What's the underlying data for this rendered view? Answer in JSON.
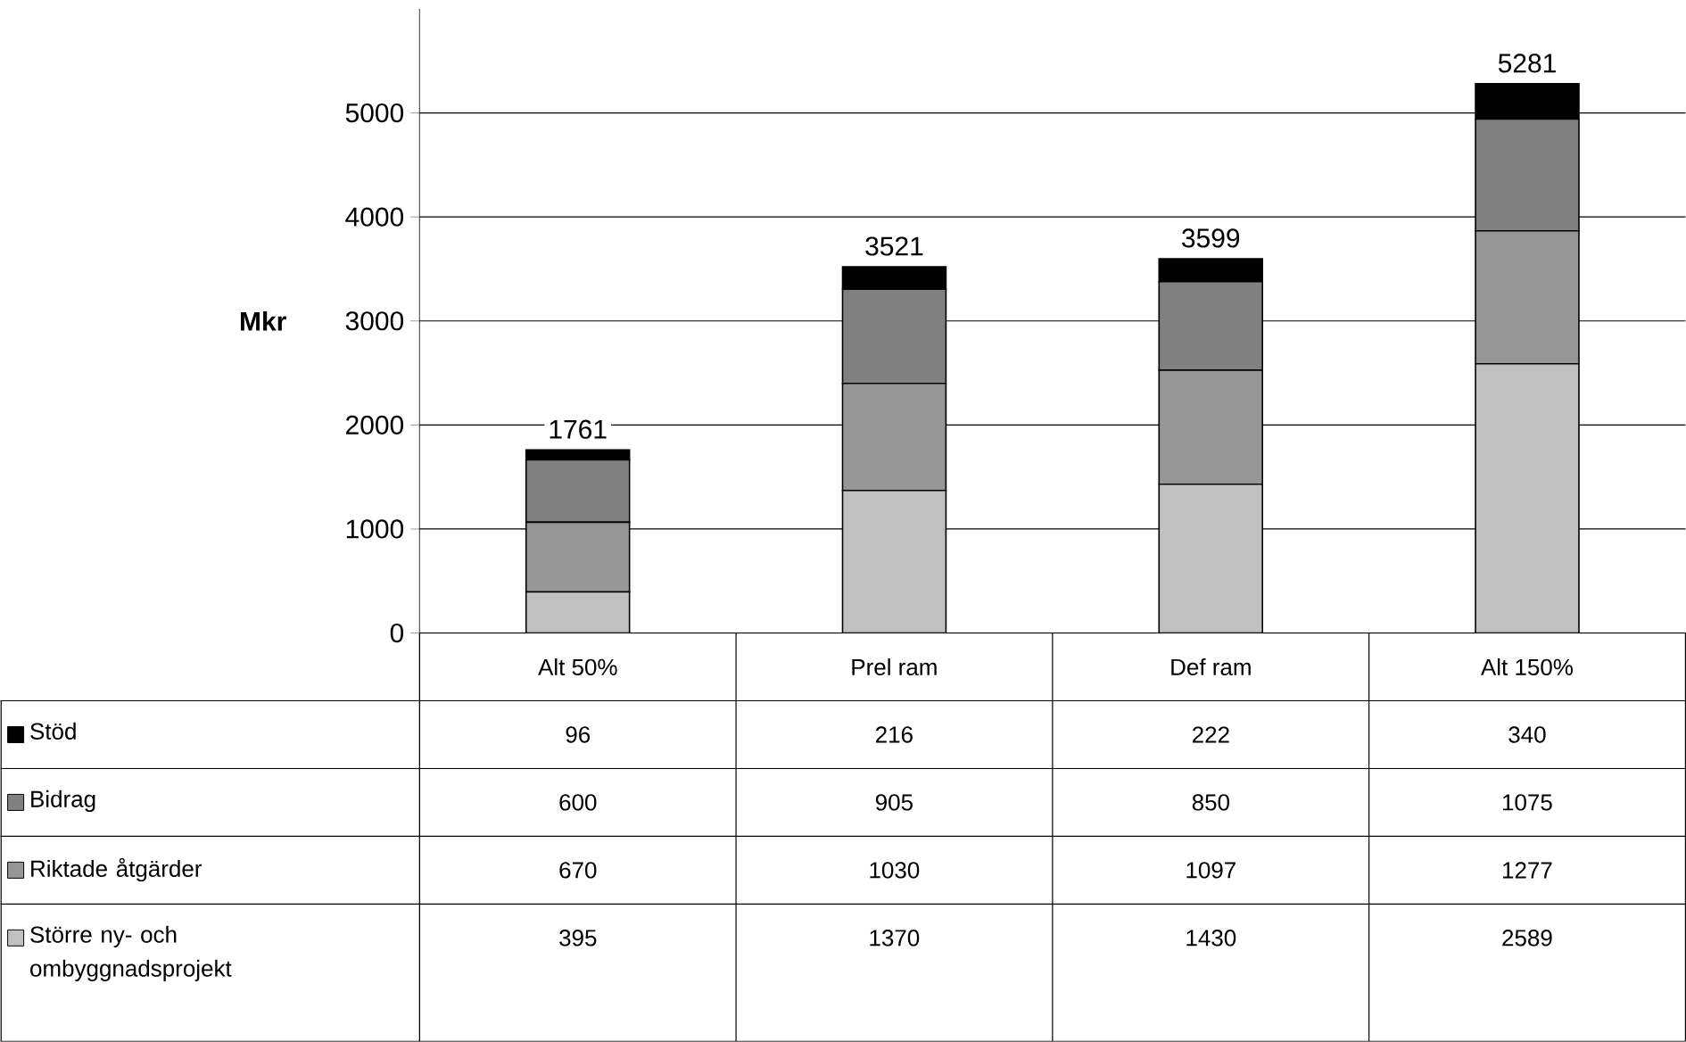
{
  "chart_data": {
    "type": "bar",
    "stacked": true,
    "ylabel": "Mkr",
    "categories": [
      "Alt 50%",
      "Prel ram",
      "Def ram",
      "Alt 150%"
    ],
    "series": [
      {
        "name": "Större ny- och ombyggnadsprojekt",
        "color": "#c0c0c0",
        "values": [
          395,
          1370,
          1430,
          2589
        ]
      },
      {
        "name": "Riktade åtgärder",
        "color": "#969696",
        "values": [
          670,
          1030,
          1097,
          1277
        ]
      },
      {
        "name": "Bidrag",
        "color": "#808080",
        "values": [
          600,
          905,
          850,
          1075
        ]
      },
      {
        "name": "Stöd",
        "color": "#000000",
        "values": [
          96,
          216,
          222,
          340
        ]
      }
    ],
    "totals": [
      "1761",
      "3521",
      "3599",
      "5281"
    ],
    "ylim": [
      0,
      6000
    ],
    "yticks": [
      0,
      1000,
      2000,
      3000,
      4000,
      5000
    ],
    "grid": "y",
    "legend": "bottom",
    "data_labels": true
  }
}
